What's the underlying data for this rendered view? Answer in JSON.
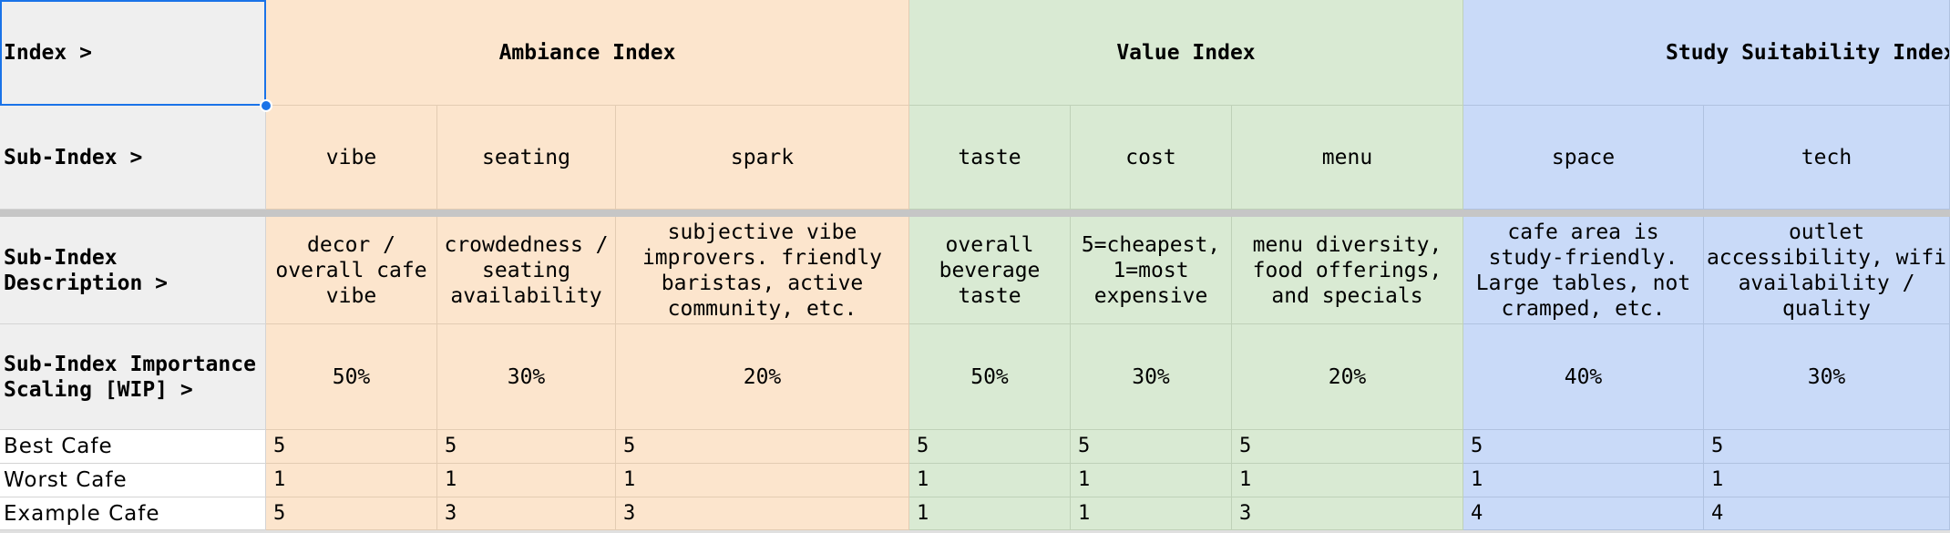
{
  "header_labels": {
    "index": "Index >",
    "sub_index": "Sub-Index >",
    "description": "Sub-Index Description >",
    "importance": "Sub-Index Importance Scaling [WIP] >"
  },
  "indices": {
    "ambiance": "Ambiance Index",
    "value": "Value Index",
    "study": "Study Suitability Index"
  },
  "sub_indices": {
    "vibe": {
      "name": "vibe",
      "description": "decor / overall cafe vibe",
      "importance": "50%"
    },
    "seating": {
      "name": "seating",
      "description": "crowdedness / seating availability",
      "importance": "30%"
    },
    "spark": {
      "name": "spark",
      "description": "subjective vibe improvers. friendly baristas, active community, etc.",
      "importance": "20%"
    },
    "taste": {
      "name": "taste",
      "description": "overall beverage taste",
      "importance": "50%"
    },
    "cost": {
      "name": "cost",
      "description": "5=cheapest, 1=most expensive",
      "importance": "30%"
    },
    "menu": {
      "name": "menu",
      "description": "menu diversity, food offerings, and specials",
      "importance": "20%"
    },
    "space": {
      "name": "space",
      "description": "cafe area is study-friendly. Large tables, not cramped, etc.",
      "importance": "40%"
    },
    "tech": {
      "name": "tech",
      "description": "outlet accessibility, wifi availability / quality",
      "importance": "30%"
    }
  },
  "rows": [
    {
      "name": "Best Cafe",
      "vibe": "5",
      "seating": "5",
      "spark": "5",
      "taste": "5",
      "cost": "5",
      "menu": "5",
      "space": "5",
      "tech": "5"
    },
    {
      "name": "Worst Cafe",
      "vibe": "1",
      "seating": "1",
      "spark": "1",
      "taste": "1",
      "cost": "1",
      "menu": "1",
      "space": "1",
      "tech": "1"
    },
    {
      "name": "Example Cafe",
      "vibe": "5",
      "seating": "3",
      "spark": "3",
      "taste": "1",
      "cost": "1",
      "menu": "3",
      "space": "4",
      "tech": "4"
    }
  ],
  "colors": {
    "ambiance": "#fce5cd",
    "value": "#d9ead3",
    "study": "#c9daf8",
    "label_column": "#efefef",
    "selection": "#1a73e8"
  }
}
